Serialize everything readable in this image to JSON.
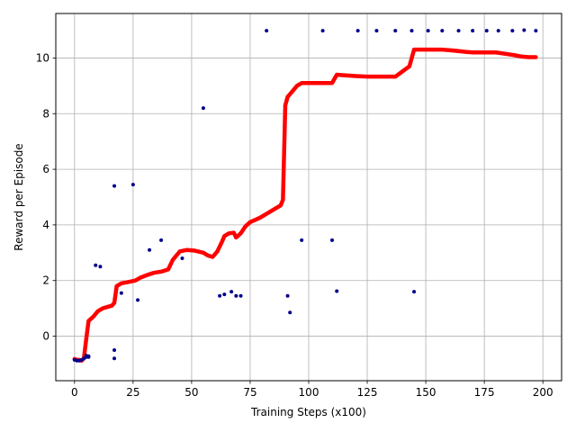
{
  "chart_data": {
    "type": "line",
    "title": "",
    "xlabel": "Training Steps (x100)",
    "ylabel": "Reward per Episode",
    "xlim": [
      -8,
      208
    ],
    "ylim": [
      -1.6,
      11.6
    ],
    "xticks": [
      0,
      25,
      50,
      75,
      100,
      125,
      150,
      175,
      200
    ],
    "yticks": [
      0,
      2,
      4,
      6,
      8,
      10
    ],
    "grid": true,
    "legend": "none",
    "colors": {
      "line": "#ff0000",
      "scatter": "#00008b",
      "grid": "#b0b0b0"
    },
    "series": [
      {
        "kind": "line",
        "x": [
          0,
          1,
          2,
          3,
          4,
          5,
          6,
          8,
          10,
          12,
          14,
          16,
          17,
          18,
          20,
          23,
          26,
          28,
          31,
          34,
          37,
          40,
          42,
          45,
          48,
          51,
          55,
          57,
          59,
          61,
          63,
          64,
          66,
          68,
          69,
          71,
          73,
          75,
          79,
          82,
          86,
          88,
          89,
          90,
          91,
          93,
          95,
          97,
          100,
          105,
          110,
          112,
          115,
          120,
          125,
          130,
          137,
          143,
          145,
          148,
          151,
          154,
          157,
          160,
          164,
          167,
          170,
          175,
          180,
          184,
          188,
          191,
          194,
          197
        ],
        "y": [
          -0.82,
          -0.85,
          -0.85,
          -0.88,
          -0.8,
          -0.1,
          0.55,
          0.7,
          0.9,
          1.0,
          1.05,
          1.1,
          1.2,
          1.8,
          1.9,
          1.95,
          2.0,
          2.1,
          2.2,
          2.28,
          2.32,
          2.4,
          2.75,
          3.05,
          3.1,
          3.08,
          3.0,
          2.9,
          2.85,
          3.05,
          3.4,
          3.6,
          3.7,
          3.72,
          3.55,
          3.7,
          3.95,
          4.1,
          4.25,
          4.4,
          4.6,
          4.7,
          4.9,
          8.3,
          8.6,
          8.8,
          9.0,
          9.1,
          9.1,
          9.1,
          9.1,
          9.4,
          9.38,
          9.35,
          9.33,
          9.33,
          9.33,
          9.7,
          10.3,
          10.3,
          10.3,
          10.3,
          10.3,
          10.28,
          10.25,
          10.22,
          10.2,
          10.2,
          10.2,
          10.15,
          10.1,
          10.05,
          10.03,
          10.03
        ]
      },
      {
        "kind": "scatter",
        "x": [
          0,
          1,
          2,
          3,
          4,
          5,
          5,
          6,
          6,
          9,
          11,
          17,
          17,
          17,
          20,
          25,
          27,
          32,
          37,
          46,
          55,
          62,
          64,
          67,
          69,
          71,
          82,
          91,
          92,
          97,
          106,
          110,
          112,
          121,
          129,
          137,
          144,
          145,
          151,
          157,
          164,
          170,
          176,
          181,
          187,
          192,
          197
        ],
        "y": [
          -0.85,
          -0.88,
          -0.88,
          -0.85,
          -0.8,
          -0.75,
          -0.7,
          -0.75,
          -0.72,
          2.55,
          2.5,
          5.4,
          -0.5,
          -0.8,
          1.55,
          5.45,
          1.3,
          3.1,
          3.45,
          2.8,
          8.2,
          1.45,
          1.5,
          1.6,
          1.45,
          1.45,
          10.98,
          1.45,
          0.85,
          3.45,
          10.98,
          3.45,
          1.62,
          10.98,
          10.98,
          10.98,
          10.98,
          1.6,
          10.98,
          10.98,
          10.98,
          10.98,
          10.98,
          10.98,
          10.98,
          11.0,
          10.98
        ]
      }
    ]
  }
}
